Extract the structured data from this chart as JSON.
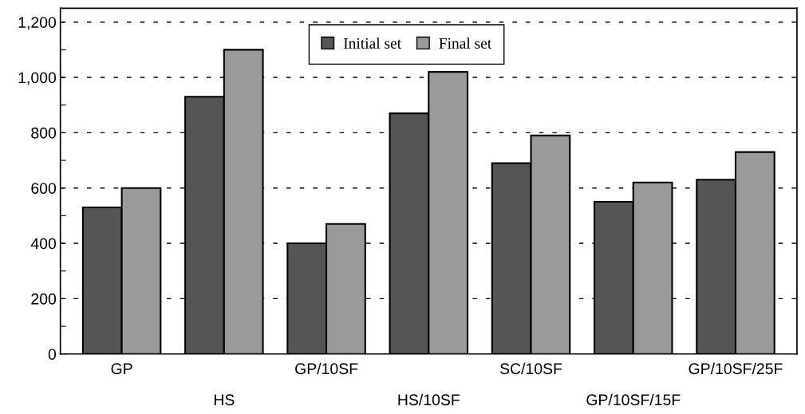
{
  "chart_data": {
    "type": "bar",
    "categories": [
      "GP",
      "HS",
      "GP/10SF",
      "HS/10SF",
      "SC/10SF",
      "GP/10SF/15F",
      "GP/10SF/25F"
    ],
    "series": [
      {
        "name": "Initial set",
        "color": "#555555",
        "values": [
          530,
          930,
          400,
          870,
          690,
          550,
          630
        ]
      },
      {
        "name": "Final set",
        "color": "#9a9a9a",
        "values": [
          600,
          1100,
          470,
          1020,
          790,
          620,
          730
        ]
      }
    ],
    "ylim": [
      0,
      1250
    ],
    "yticks": [
      0,
      {
        "value": 100,
        "label": null
      },
      200,
      {
        "value": 300,
        "label": null
      },
      400,
      {
        "value": 500,
        "label": null
      },
      600,
      {
        "value": 700,
        "label": null
      },
      800,
      {
        "value": 900,
        "label": null
      },
      {
        "value": 1000,
        "label": "1,000"
      },
      {
        "value": 1100,
        "label": null
      },
      {
        "value": 1200,
        "label": "1,200"
      }
    ],
    "grid": "y",
    "legend": "top"
  }
}
